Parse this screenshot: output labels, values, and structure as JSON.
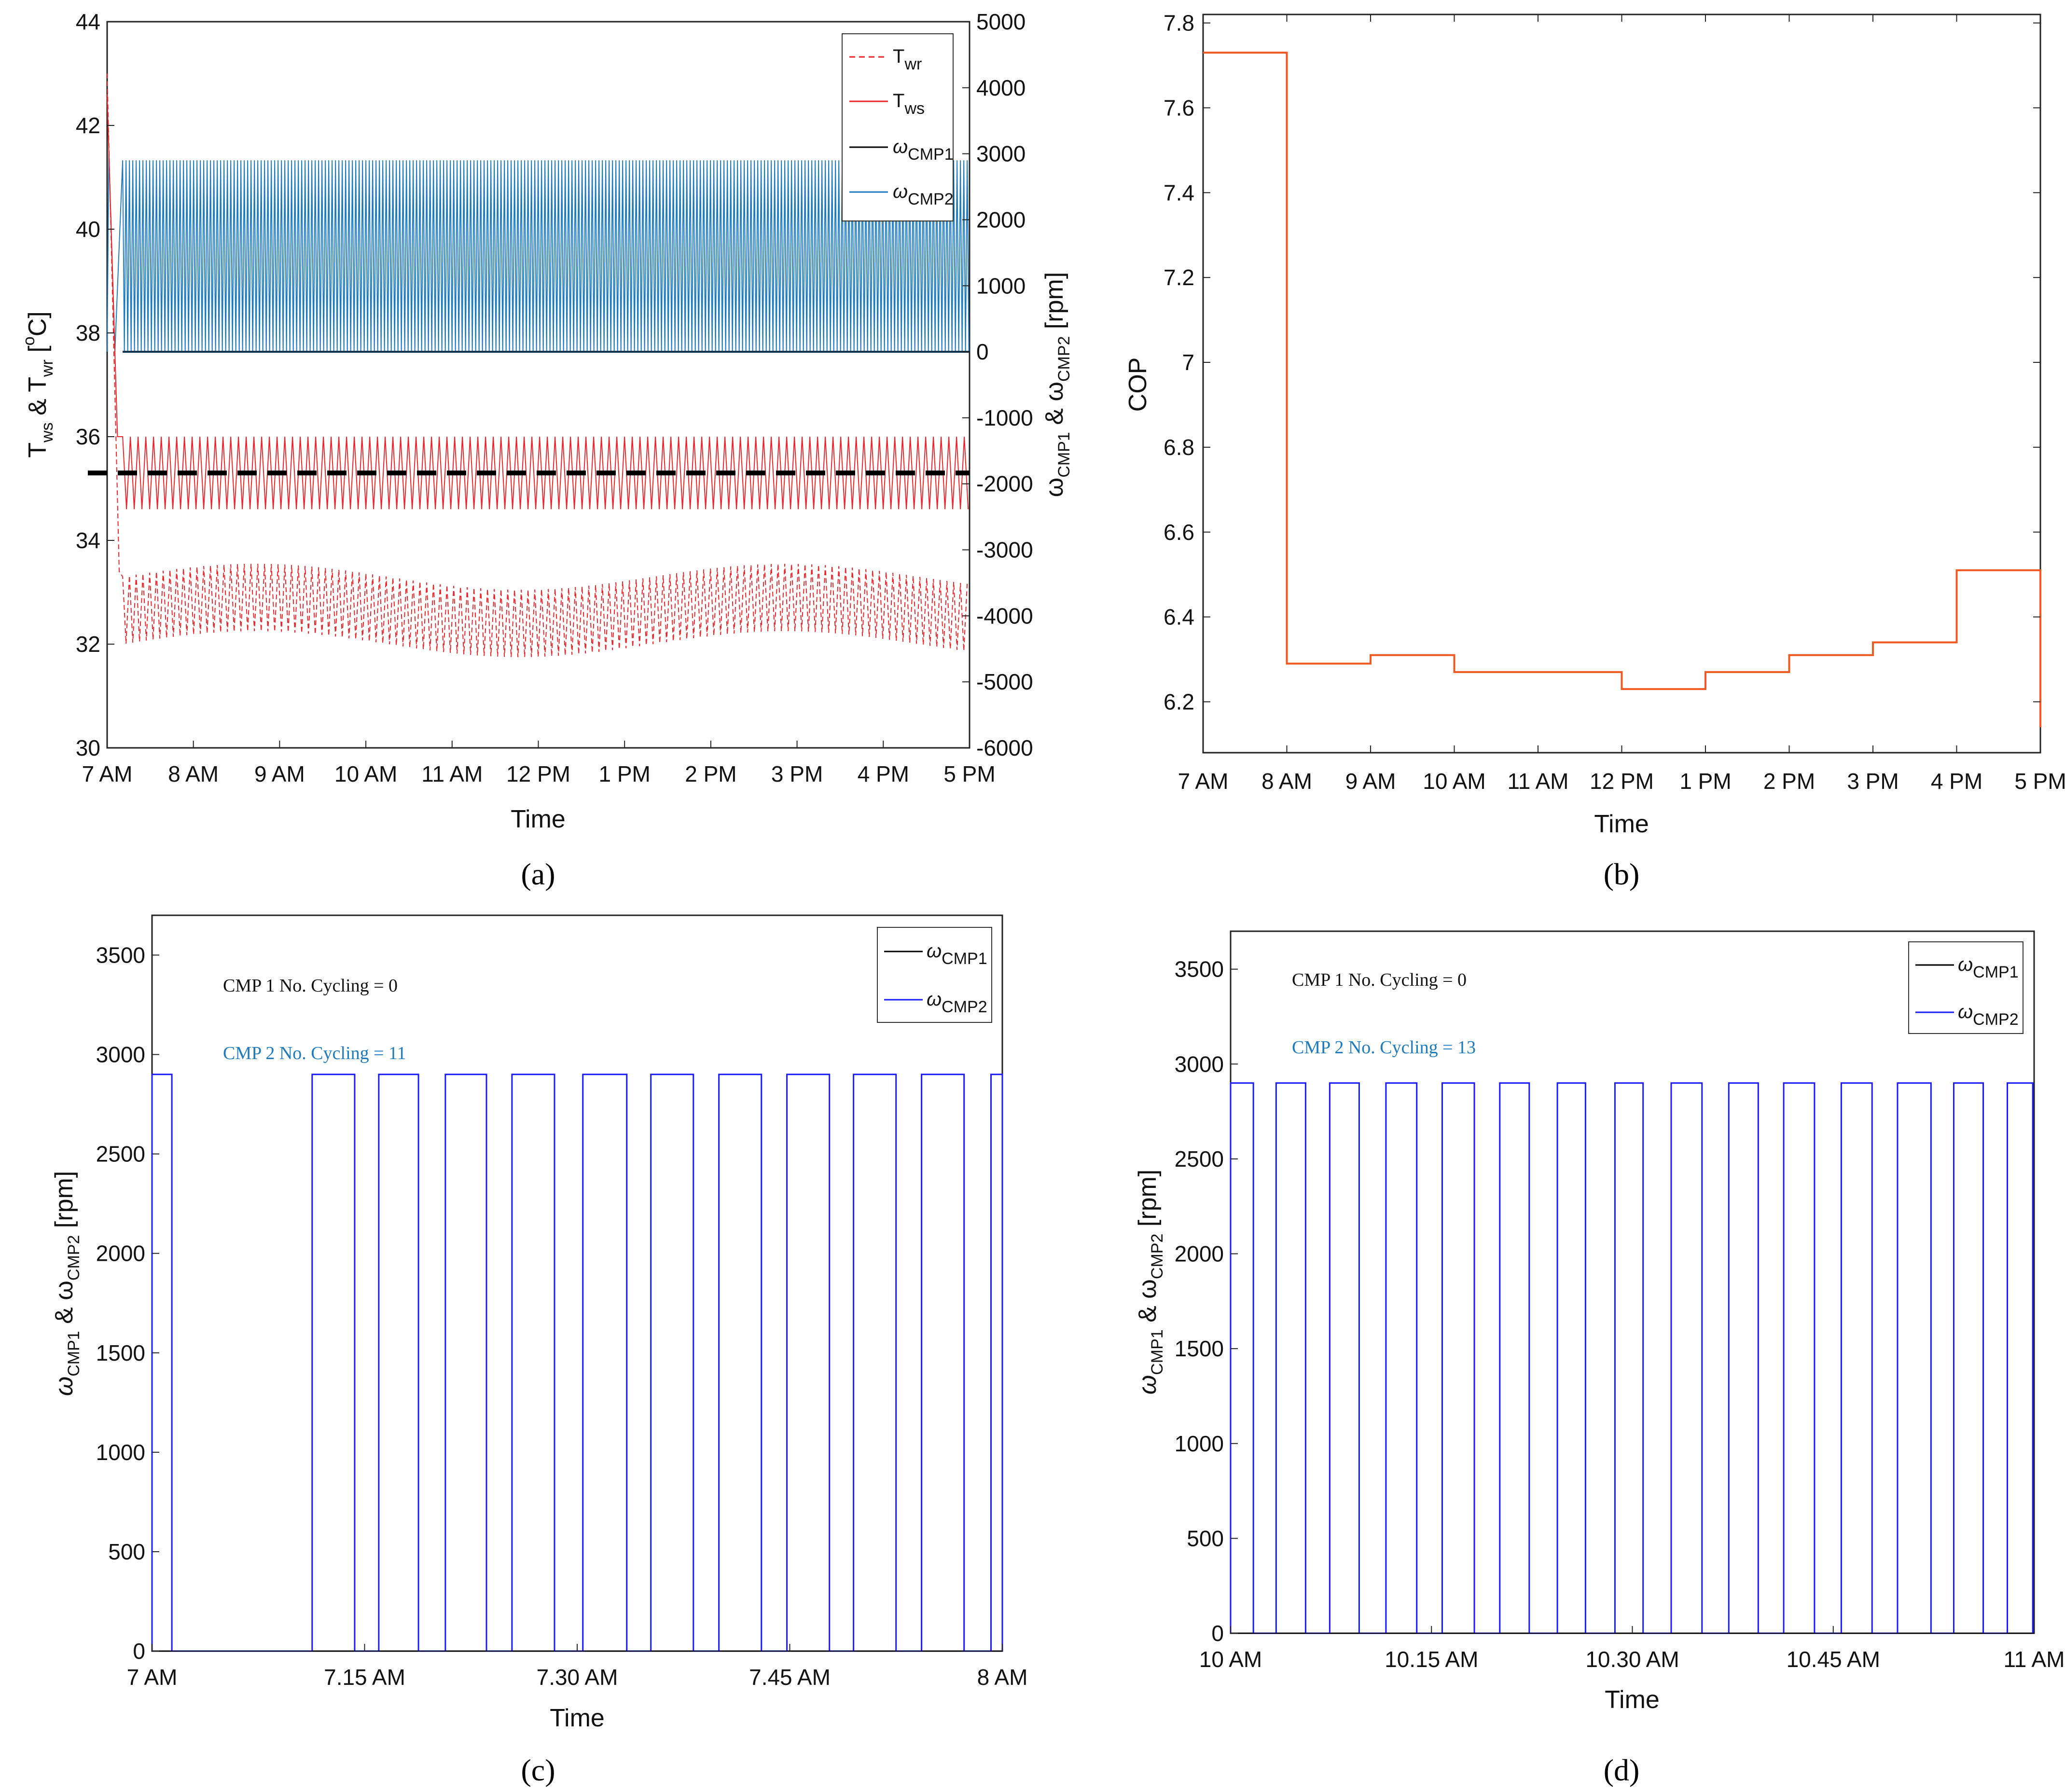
{
  "colors": {
    "twr": "#e8262b",
    "tws": "#e8262b",
    "cmp1": "#000000",
    "cmp2_a": "#1e7bbf",
    "cmp2": "#1a1aff",
    "cop": "#f05a22",
    "setpoint": "#000000"
  },
  "panels": {
    "a": "(a)",
    "b": "(b)",
    "c": "(c)",
    "d": "(d)"
  },
  "chart_data": [
    {
      "id": "a",
      "type": "line",
      "xlabel": "Time",
      "ylabel_left": {
        "main": "T",
        "s1": "ws",
        "mid": " & T",
        "s2": "wr",
        "tail": " [",
        "sup": "o",
        "end": "C]"
      },
      "ylabel_right": {
        "w1": "ω",
        "s1": "CMP1",
        "mid": " & ω",
        "s2": "CMP2",
        "end": " [rpm]"
      },
      "x_ticks": [
        "7 AM",
        "8 AM",
        "9 AM",
        "10 AM",
        "11 AM",
        "12 PM",
        "1 PM",
        "2 PM",
        "3 PM",
        "4 PM",
        "5 PM"
      ],
      "xlim": [
        7,
        17
      ],
      "ylim_left": [
        30,
        44
      ],
      "yticks_left": [
        30,
        32,
        34,
        36,
        38,
        40,
        42,
        44
      ],
      "ylim_right": [
        -6000,
        5000
      ],
      "yticks_right": [
        -6000,
        -5000,
        -4000,
        -3000,
        -2000,
        -1000,
        0,
        1000,
        2000,
        3000,
        4000,
        5000
      ],
      "legend": [
        {
          "name": "T",
          "sub": "wr",
          "style": "dashed"
        },
        {
          "name": "T",
          "sub": "ws",
          "style": "solid"
        },
        {
          "name": "ω",
          "sub": "CMP1",
          "style": "solid"
        },
        {
          "name": "ω",
          "sub": "CMP2",
          "style": "solid"
        }
      ],
      "series": {
        "tws_band": [
          34.6,
          36.0
        ],
        "tws_start": 42.6,
        "twr_band_low": [
          31.9,
          33.4
        ],
        "twr_band_high": [
          32.5,
          33.7
        ],
        "setpoint": 35.3,
        "cmp2_on_rpm": 2900,
        "cmp2_off_rpm": 0,
        "cmp1_rpm": 0
      }
    },
    {
      "id": "b",
      "type": "line",
      "step": true,
      "xlabel": "Time",
      "ylabel": "COP",
      "x_ticks": [
        "7 AM",
        "8 AM",
        "9 AM",
        "10 AM",
        "11 AM",
        "12 PM",
        "1 PM",
        "2 PM",
        "3 PM",
        "4 PM",
        "5 PM"
      ],
      "xlim": [
        7,
        17
      ],
      "ylim": [
        6.08,
        7.82
      ],
      "yticks": [
        6.2,
        6.4,
        6.6,
        6.8,
        7.0,
        7.2,
        7.4,
        7.6,
        7.8
      ],
      "ytick_labels": [
        "6.2",
        "6.4",
        "6.6",
        "6.8",
        "7",
        "7.2",
        "7.4",
        "7.6",
        "7.8"
      ],
      "hours": [
        7,
        8,
        9,
        10,
        11,
        12,
        13,
        14,
        15,
        16,
        17
      ],
      "values": [
        7.73,
        6.29,
        6.31,
        6.27,
        6.27,
        6.23,
        6.27,
        6.31,
        6.34,
        6.51,
        6.14
      ]
    },
    {
      "id": "c",
      "type": "line",
      "step": true,
      "xlabel": "Time",
      "ylabel": {
        "w1": "ω",
        "s1": "CMP1",
        "mid": " & ω",
        "s2": "CMP2",
        "end": " [rpm]"
      },
      "x_ticks": [
        "7 AM",
        "7.15 AM",
        "7.30 AM",
        "7.45 AM",
        "8 AM"
      ],
      "xlim": [
        0,
        60
      ],
      "ylim": [
        0,
        3700
      ],
      "yticks": [
        0,
        500,
        1000,
        1500,
        2000,
        2500,
        3000,
        3500
      ],
      "annotations": [
        "CMP 1 No. Cycling = 0",
        "CMP 2 No. Cycling = 11"
      ],
      "legend": [
        {
          "name": "ω",
          "sub": "CMP1"
        },
        {
          "name": "ω",
          "sub": "CMP2"
        }
      ],
      "cmp2_on_rpm": 2900,
      "cmp2_on_intervals": [
        [
          0,
          1.4
        ],
        [
          11.3,
          14.3
        ],
        [
          16.0,
          18.8
        ],
        [
          20.7,
          23.6
        ],
        [
          25.4,
          28.4
        ],
        [
          30.4,
          33.5
        ],
        [
          35.2,
          38.2
        ],
        [
          40.0,
          43.0
        ],
        [
          44.8,
          47.8
        ],
        [
          49.5,
          52.5
        ],
        [
          54.3,
          57.3
        ],
        [
          59.2,
          60
        ]
      ],
      "cmp1_rpm": 0
    },
    {
      "id": "d",
      "type": "line",
      "step": true,
      "xlabel": "Time",
      "ylabel": {
        "w1": "ω",
        "s1": "CMP1",
        "mid": " & ω",
        "s2": "CMP2",
        "end": " [rpm]"
      },
      "x_ticks": [
        "10 AM",
        "10.15 AM",
        "10.30 AM",
        "10.45 AM",
        "11 AM"
      ],
      "xlim": [
        0,
        60
      ],
      "ylim": [
        0,
        3700
      ],
      "yticks": [
        0,
        500,
        1000,
        1500,
        2000,
        2500,
        3000,
        3500
      ],
      "annotations": [
        "CMP 1 No. Cycling = 0",
        "CMP 2 No. Cycling = 13"
      ],
      "legend": [
        {
          "name": "ω",
          "sub": "CMP1"
        },
        {
          "name": "ω",
          "sub": "CMP2"
        }
      ],
      "cmp2_on_rpm": 2900,
      "cmp2_on_intervals": [
        [
          0,
          1.7
        ],
        [
          3.4,
          5.6
        ],
        [
          7.4,
          9.6
        ],
        [
          11.6,
          13.9
        ],
        [
          15.8,
          18.2
        ],
        [
          20.1,
          22.3
        ],
        [
          24.4,
          26.5
        ],
        [
          28.7,
          30.8
        ],
        [
          32.9,
          35.2
        ],
        [
          37.2,
          39.4
        ],
        [
          41.3,
          43.6
        ],
        [
          45.6,
          47.9
        ],
        [
          49.8,
          52.3
        ],
        [
          54.0,
          56.2
        ],
        [
          58.0,
          59.9
        ]
      ],
      "cmp1_rpm": 0
    }
  ]
}
